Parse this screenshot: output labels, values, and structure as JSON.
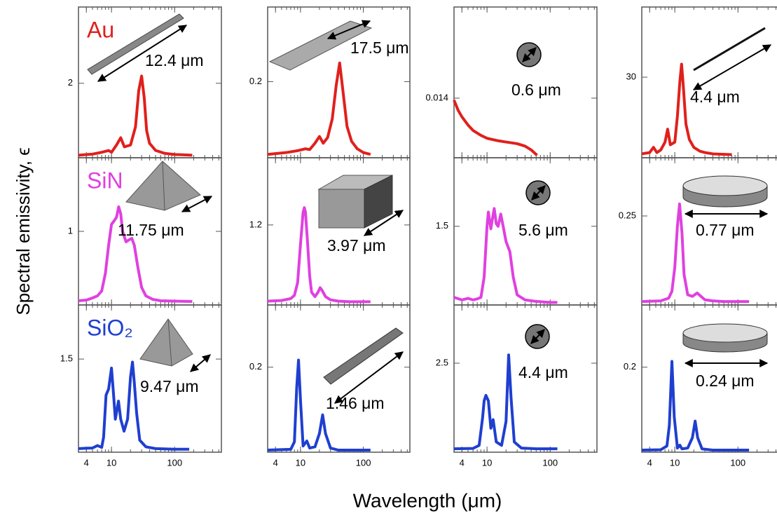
{
  "figure": {
    "xlabel": "Wavelength (μm)",
    "ylabel": "Spectral emissivity, ϵ"
  },
  "chart_data": [
    {
      "type": "line",
      "label": "Au",
      "annotation": "12.4 μm",
      "log_x": true,
      "xlim": [
        3,
        550
      ],
      "xticks": [
        4,
        10,
        100
      ],
      "ylim": [
        -0.05,
        4.1
      ],
      "yticks": [
        2
      ],
      "x": [
        3,
        5,
        7,
        9,
        10,
        12,
        14,
        16,
        20,
        24,
        27,
        30,
        33,
        36,
        40,
        50,
        70,
        100,
        190
      ],
      "series": [
        {
          "color": "#e0201c",
          "values": [
            0.02,
            0.05,
            0.1,
            0.15,
            0.1,
            0.3,
            0.5,
            0.25,
            0.3,
            0.8,
            1.8,
            2.2,
            1.6,
            0.7,
            0.35,
            0.15,
            0.07,
            0.04,
            0.02
          ]
        }
      ]
    },
    {
      "type": "line",
      "annotation": "17.5 μm",
      "log_x": true,
      "xlim": [
        3,
        550
      ],
      "xticks": [
        4,
        10,
        100
      ],
      "ylim": [
        -0.004,
        0.4
      ],
      "yticks": [
        0.2
      ],
      "x": [
        3,
        6,
        9,
        12,
        14,
        17,
        20,
        23,
        27,
        32,
        37,
        42,
        47,
        55,
        65,
        80,
        100,
        130
      ],
      "series": [
        {
          "color": "#e0201c",
          "values": [
            0.005,
            0.01,
            0.015,
            0.02,
            0.018,
            0.035,
            0.053,
            0.035,
            0.05,
            0.1,
            0.19,
            0.25,
            0.18,
            0.08,
            0.04,
            0.02,
            0.01,
            0.005
          ]
        }
      ]
    },
    {
      "type": "line",
      "annotation": "0.6 μm",
      "log_x": true,
      "xlim": [
        3,
        550
      ],
      "xticks": [
        4,
        10,
        100
      ],
      "ylim": [
        -0.0004,
        0.036
      ],
      "yticks": [
        0.014
      ],
      "x": [
        3,
        3.5,
        4,
        5,
        6,
        8,
        10,
        15,
        20,
        30,
        40,
        50,
        62
      ],
      "series": [
        {
          "color": "#e0201c",
          "values": [
            0.0135,
            0.011,
            0.0095,
            0.0075,
            0.0062,
            0.005,
            0.0043,
            0.0037,
            0.0034,
            0.003,
            0.0024,
            0.0015,
            0.0002
          ]
        }
      ]
    },
    {
      "type": "line",
      "annotation": "4.4 μm",
      "log_x": true,
      "xlim": [
        3,
        550
      ],
      "xticks": [
        4,
        10,
        100
      ],
      "ylim": [
        -1,
        57
      ],
      "yticks": [
        30
      ],
      "x": [
        3,
        4,
        4.6,
        5.2,
        6,
        7,
        7.7,
        8.5,
        10,
        11,
        12,
        12.8,
        13.5,
        15,
        17,
        20,
        25,
        30,
        40,
        60,
        80
      ],
      "series": [
        {
          "color": "#e0201c",
          "values": [
            0.5,
            1,
            3,
            1,
            2,
            5,
            10,
            4,
            5,
            15,
            28,
            35,
            28,
            12,
            6,
            3,
            1.5,
            1,
            0.5,
            0.3,
            0.2
          ]
        }
      ]
    },
    {
      "type": "line",
      "label": "SiN",
      "annotation": "11.75 μm",
      "log_x": true,
      "xlim": [
        3,
        550
      ],
      "xticks": [
        4,
        10,
        100
      ],
      "ylim": [
        -0.05,
        2.05
      ],
      "yticks": [
        1
      ],
      "x": [
        3,
        4,
        5,
        6,
        7,
        8,
        9,
        10,
        11,
        12,
        13,
        14,
        15,
        17,
        19,
        21,
        23,
        26,
        30,
        35,
        45,
        60,
        100,
        190
      ],
      "series": [
        {
          "color": "#e040e0",
          "values": [
            0.01,
            0.02,
            0.05,
            0.08,
            0.15,
            0.4,
            0.8,
            1.1,
            1.15,
            1.2,
            1.35,
            1.25,
            1.0,
            0.85,
            0.88,
            0.9,
            0.8,
            0.5,
            0.2,
            0.08,
            0.03,
            0.01,
            0.005,
            0
          ]
        }
      ]
    },
    {
      "type": "line",
      "annotation": "3.97 μm",
      "log_x": true,
      "xlim": [
        3,
        550
      ],
      "xticks": [
        4,
        10,
        100
      ],
      "ylim": [
        -0.05,
        2.25
      ],
      "yticks": [
        1.2
      ],
      "x": [
        3,
        5,
        7,
        8,
        9,
        10,
        11,
        11.5,
        12,
        13,
        14,
        15,
        17,
        19,
        20.5,
        22,
        25,
        30,
        40,
        60,
        100,
        130
      ],
      "series": [
        {
          "color": "#e040e0",
          "values": [
            0.01,
            0.02,
            0.05,
            0.1,
            0.3,
            0.9,
            1.4,
            1.47,
            1.4,
            0.9,
            0.4,
            0.15,
            0.08,
            0.15,
            0.22,
            0.18,
            0.08,
            0.03,
            0.01,
            0,
            0,
            0
          ]
        }
      ]
    },
    {
      "type": "line",
      "annotation": "5.6 μm",
      "log_x": true,
      "xlim": [
        3,
        550
      ],
      "xticks": [
        4,
        10,
        100
      ],
      "ylim": [
        -0.05,
        2.85
      ],
      "yticks": [
        1.5
      ],
      "x": [
        3,
        4,
        5,
        6,
        7,
        8,
        9,
        10,
        10.5,
        11.5,
        12,
        13,
        14,
        15,
        16.5,
        18,
        20,
        23,
        26,
        30,
        40,
        60,
        100,
        130
      ],
      "series": [
        {
          "color": "#e040e0",
          "values": [
            0.1,
            0.05,
            0.08,
            0.05,
            0.07,
            0.1,
            0.5,
            1.5,
            1.78,
            1.45,
            1.6,
            1.85,
            1.55,
            1.5,
            1.74,
            1.5,
            1.2,
            1.0,
            0.5,
            0.15,
            0.05,
            0.02,
            0,
            0
          ]
        }
      ]
    },
    {
      "type": "line",
      "annotation": "0.77 μm",
      "log_x": true,
      "xlim": [
        3,
        550
      ],
      "xticks": [
        4,
        10,
        100
      ],
      "ylim": [
        -0.01,
        0.42
      ],
      "yticks": [
        0.25
      ],
      "x": [
        3,
        6,
        8,
        9,
        10,
        11,
        11.9,
        13,
        14,
        16,
        19,
        22.6,
        26,
        30,
        40,
        60,
        100,
        150
      ],
      "series": [
        {
          "color": "#e040e0",
          "values": [
            0,
            0.002,
            0.01,
            0.03,
            0.1,
            0.22,
            0.285,
            0.2,
            0.08,
            0.02,
            0.015,
            0.025,
            0.015,
            0.005,
            0.002,
            0,
            0,
            0
          ]
        }
      ]
    },
    {
      "type": "line",
      "label": "SiO₂",
      "annotation": "9.47 μm",
      "log_x": true,
      "xlim": [
        3,
        550
      ],
      "xticks": [
        4,
        10,
        100
      ],
      "ylim": [
        -0.05,
        2.4
      ],
      "yticks": [
        1.5
      ],
      "x": [
        3,
        5,
        6,
        7,
        7.5,
        8.2,
        9,
        10,
        10.8,
        11.5,
        12.9,
        14,
        15.8,
        18,
        20,
        21.5,
        23,
        25,
        28,
        35,
        50,
        100,
        170
      ],
      "series": [
        {
          "color": "#1f3fd0",
          "values": [
            0.01,
            0.02,
            0.06,
            0.03,
            0.2,
            0.9,
            1.0,
            1.35,
            0.9,
            0.5,
            0.8,
            0.5,
            0.3,
            0.5,
            1.2,
            1.45,
            1.1,
            0.6,
            0.15,
            0.04,
            0.01,
            0,
            0
          ]
        }
      ]
    },
    {
      "type": "line",
      "annotation": "1.46 μm",
      "log_x": true,
      "xlim": [
        3,
        550
      ],
      "xticks": [
        4,
        10,
        100
      ],
      "ylim": [
        -0.005,
        0.35
      ],
      "yticks": [
        0.2
      ],
      "x": [
        3,
        7,
        8,
        8.7,
        9.3,
        10,
        11,
        12.6,
        14,
        17,
        20,
        22.5,
        25,
        30,
        40,
        80,
        130
      ],
      "series": [
        {
          "color": "#1f3fd0",
          "values": [
            0,
            0.002,
            0.02,
            0.15,
            0.217,
            0.12,
            0.01,
            0.022,
            0.005,
            0.008,
            0.04,
            0.085,
            0.04,
            0.005,
            0,
            0,
            0
          ]
        }
      ]
    },
    {
      "type": "line",
      "annotation": "4.4 μm",
      "log_x": true,
      "xlim": [
        3,
        550
      ],
      "xticks": [
        4,
        10,
        100
      ],
      "ylim": [
        -0.1,
        4.2
      ],
      "yticks": [
        2.5
      ],
      "x": [
        3,
        6,
        7.5,
        8.5,
        9,
        9.6,
        10.5,
        11.5,
        12.5,
        14,
        17,
        20,
        22,
        24,
        27,
        35,
        60,
        130
      ],
      "series": [
        {
          "color": "#1f3fd0",
          "values": [
            0,
            0.01,
            0.1,
            0.9,
            1.4,
            1.56,
            1.4,
            0.6,
            0.85,
            0.2,
            0.1,
            0.8,
            2.74,
            1.5,
            0.2,
            0.02,
            0,
            0
          ]
        }
      ]
    },
    {
      "type": "line",
      "annotation": "0.24 μm",
      "log_x": true,
      "xlim": [
        3,
        550
      ],
      "xticks": [
        4,
        10,
        100
      ],
      "ylim": [
        -0.005,
        0.35
      ],
      "yticks": [
        0.2
      ],
      "x": [
        3,
        6,
        7.5,
        8.2,
        9,
        9.8,
        11,
        12,
        13,
        16,
        19,
        21,
        23,
        27,
        40,
        80,
        150
      ],
      "series": [
        {
          "color": "#1f3fd0",
          "values": [
            0,
            0.001,
            0.01,
            0.06,
            0.214,
            0.08,
            0.005,
            0.012,
            0.003,
            0.005,
            0.03,
            0.07,
            0.03,
            0.003,
            0,
            0,
            0
          ]
        }
      ]
    }
  ]
}
